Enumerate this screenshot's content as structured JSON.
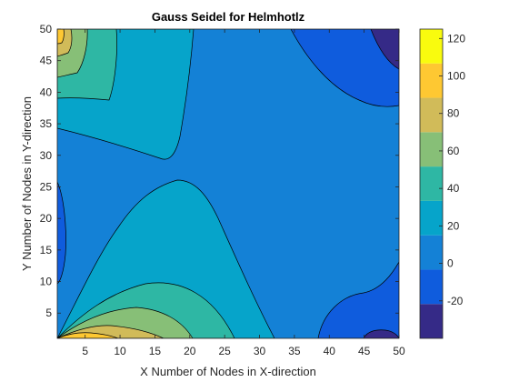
{
  "chart_data": {
    "type": "contourf",
    "title": "Gauss Seidel for Helmhotlz",
    "xlabel": "X Number of Nodes in X-direction",
    "ylabel": "Y Number of Nodes in Y-direction",
    "xlim": [
      1,
      50
    ],
    "ylim": [
      1,
      50
    ],
    "xticks": [
      5,
      10,
      15,
      20,
      25,
      30,
      35,
      40,
      45,
      50
    ],
    "yticks": [
      5,
      10,
      15,
      20,
      25,
      30,
      35,
      40,
      45,
      50
    ],
    "colorbar": {
      "clim": [
        -40,
        125
      ],
      "ticks": [
        -20,
        0,
        20,
        40,
        60,
        80,
        100,
        120
      ],
      "colors": [
        "#352a87",
        "#0f5cdd",
        "#1481d6",
        "#06a4ca",
        "#2eb7a4",
        "#87bf77",
        "#d1bb59",
        "#fec832",
        "#f9fb0e"
      ]
    },
    "contour_levels": [
      -25,
      0,
      25,
      50,
      75,
      100
    ],
    "grid": false,
    "legend": "none"
  }
}
